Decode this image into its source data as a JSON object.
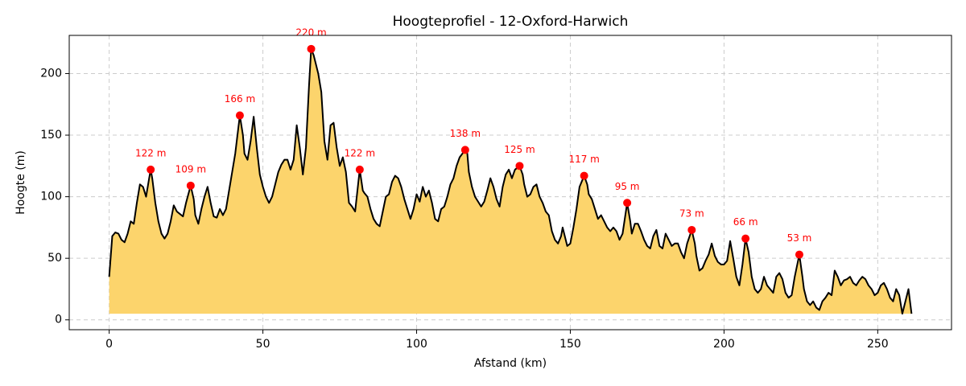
{
  "chart_data": {
    "type": "area",
    "title": "Hoogteprofiel - 12-Oxford-Harwich",
    "xlabel": "Afstand (km)",
    "ylabel": "Hoogte (m)",
    "x": [
      0,
      1,
      2,
      3,
      4,
      5,
      6,
      7,
      8,
      9,
      10,
      11,
      12,
      13,
      13.5,
      14,
      15,
      16,
      17,
      18,
      19,
      20,
      21,
      22,
      23,
      24,
      25,
      26.5,
      27.5,
      28,
      29,
      30,
      31,
      32,
      33,
      34,
      35,
      36,
      37,
      38,
      39,
      40,
      41,
      42.5,
      43.5,
      44,
      45,
      46,
      47,
      48,
      49,
      50,
      51,
      52,
      53,
      54,
      55,
      56,
      57,
      58,
      59,
      60,
      61,
      62,
      63,
      64,
      65,
      65.7,
      66.5,
      67,
      68,
      69,
      70,
      71,
      72,
      73,
      74,
      75,
      76,
      77,
      78,
      79,
      80,
      81.5,
      82.5,
      83,
      84,
      85,
      86,
      87,
      88,
      89,
      90,
      91,
      92,
      93,
      94,
      95,
      96,
      97,
      98,
      99,
      100,
      101,
      102,
      103,
      104,
      105,
      106,
      107,
      108,
      109,
      110,
      111,
      112,
      113,
      114,
      115.8,
      116.5,
      117,
      118,
      119,
      120,
      121,
      122,
      123,
      124,
      125,
      126,
      127,
      128,
      129,
      130,
      131,
      132,
      133.5,
      134.5,
      135,
      136,
      137,
      138,
      139,
      140,
      141,
      142,
      143,
      144,
      145,
      146,
      147,
      147.5,
      148,
      149,
      150,
      151,
      152,
      153,
      154.5,
      155.5,
      156,
      157,
      158,
      159,
      160,
      161,
      162,
      163,
      164,
      165,
      166,
      167,
      168.5,
      169.5,
      170,
      171,
      172,
      173,
      174,
      175,
      176,
      177,
      178,
      179,
      180,
      181,
      182,
      183,
      184,
      185,
      186,
      187,
      188,
      189.5,
      190.5,
      191,
      192,
      193,
      194,
      195,
      196,
      197,
      198,
      199,
      200,
      201,
      202,
      203,
      204,
      205,
      206,
      207,
      208,
      209,
      210,
      211,
      212,
      213,
      214,
      215,
      216,
      217,
      218,
      219,
      220,
      221,
      222,
      223,
      224.5,
      225.5,
      226,
      227,
      228,
      229,
      230,
      231,
      232,
      233,
      234,
      235,
      236,
      237,
      238,
      239,
      240,
      241,
      242,
      243,
      244,
      245,
      246,
      247,
      248,
      249,
      250,
      251,
      252,
      253,
      254,
      255,
      256,
      257,
      258,
      259,
      260,
      261
    ],
    "values": [
      35,
      68,
      71,
      70,
      65,
      63,
      70,
      80,
      78,
      95,
      110,
      108,
      100,
      115,
      122,
      115,
      95,
      80,
      70,
      66,
      70,
      80,
      93,
      88,
      86,
      84,
      95,
      109,
      98,
      85,
      78,
      90,
      100,
      108,
      95,
      84,
      83,
      90,
      85,
      90,
      105,
      120,
      135,
      166,
      150,
      135,
      130,
      145,
      165,
      140,
      118,
      108,
      100,
      95,
      100,
      110,
      120,
      126,
      130,
      130,
      122,
      130,
      158,
      140,
      118,
      140,
      190,
      220,
      215,
      210,
      200,
      185,
      145,
      130,
      158,
      160,
      140,
      125,
      132,
      120,
      95,
      92,
      88,
      122,
      105,
      103,
      100,
      90,
      82,
      78,
      76,
      88,
      100,
      102,
      112,
      117,
      115,
      108,
      98,
      90,
      82,
      90,
      102,
      96,
      108,
      100,
      105,
      95,
      82,
      80,
      90,
      92,
      100,
      110,
      115,
      125,
      132,
      138,
      135,
      120,
      108,
      100,
      96,
      92,
      96,
      105,
      115,
      108,
      98,
      92,
      108,
      118,
      122,
      115,
      122,
      125,
      118,
      110,
      100,
      102,
      108,
      110,
      100,
      95,
      88,
      85,
      72,
      65,
      62,
      68,
      75,
      70,
      60,
      62,
      75,
      90,
      108,
      117,
      110,
      102,
      98,
      90,
      82,
      85,
      80,
      75,
      72,
      75,
      72,
      65,
      70,
      95,
      80,
      70,
      78,
      78,
      72,
      65,
      60,
      58,
      68,
      73,
      60,
      58,
      70,
      65,
      60,
      62,
      62,
      55,
      50,
      62,
      73,
      62,
      52,
      40,
      42,
      48,
      53,
      62,
      52,
      47,
      45,
      45,
      48,
      64,
      50,
      35,
      28,
      45,
      66,
      55,
      35,
      25,
      22,
      25,
      35,
      28,
      25,
      22,
      35,
      38,
      33,
      22,
      18,
      20,
      35,
      53,
      35,
      25,
      15,
      12,
      15,
      10,
      8,
      15,
      18,
      22,
      20,
      40,
      35,
      28,
      32,
      33,
      35,
      30,
      28,
      32,
      35,
      33,
      28,
      25,
      20,
      22,
      28,
      30,
      25,
      18,
      15,
      25,
      20,
      5,
      15,
      25,
      5
    ],
    "color": "#000000",
    "fill_color": "#fcd46c",
    "peaks": {
      "x": [
        13.5,
        26.5,
        42.5,
        65.7,
        81.5,
        115.8,
        133.5,
        154.5,
        168.5,
        189.5,
        207,
        224.5
      ],
      "values": [
        122,
        109,
        166,
        220,
        122,
        138,
        125,
        117,
        95,
        73,
        66,
        53
      ],
      "value_labels": [
        "122 m",
        "109 m",
        "166 m",
        "220 m",
        "122 m",
        "138 m",
        "125 m",
        "117 m",
        "95 m",
        "73 m",
        "66 m",
        "53 m"
      ],
      "color": "#ff0000"
    },
    "xlim": [
      -13,
      274
    ],
    "ylim": [
      -8,
      231
    ],
    "xticks": [
      0,
      50,
      100,
      150,
      200,
      250
    ],
    "yticks": [
      0,
      50,
      100,
      150,
      200
    ],
    "grid": true
  }
}
